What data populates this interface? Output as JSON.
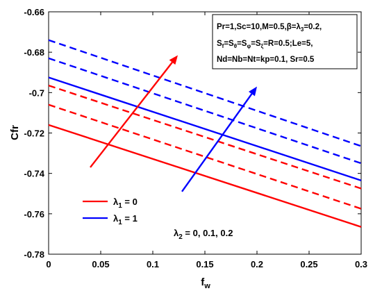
{
  "chart_data": {
    "type": "line",
    "xlabel": "f_w",
    "ylabel": "Cfr",
    "xlim": [
      0,
      0.3
    ],
    "ylim": [
      -0.78,
      -0.66
    ],
    "xticks": [
      0,
      0.05,
      0.1,
      0.15,
      0.2,
      0.25,
      0.3
    ],
    "xtick_labels": [
      "0",
      "0.05",
      "0.1",
      "0.15",
      "0.2",
      "0.25",
      "0.3"
    ],
    "yticks": [
      -0.78,
      -0.76,
      -0.74,
      -0.72,
      -0.7,
      -0.68,
      -0.66
    ],
    "ytick_labels": [
      "-0.78",
      "-0.76",
      "-0.74",
      "-0.72",
      "-0.7",
      "-0.68",
      "-0.66"
    ],
    "grid": false,
    "series": [
      {
        "name": "λ1 = 0",
        "color": "#ff0000",
        "dash": "solid",
        "x": [
          0,
          0.3
        ],
        "y": [
          -0.716,
          -0.7665
        ]
      },
      {
        "color": "#ff0000",
        "dash": "dashed",
        "x": [
          0,
          0.3
        ],
        "y": [
          -0.706,
          -0.7575
        ]
      },
      {
        "color": "#ff0000",
        "dash": "dashed",
        "x": [
          0,
          0.3
        ],
        "y": [
          -0.6965,
          -0.7475
        ]
      },
      {
        "name": "λ1 = 1",
        "color": "#0000ff",
        "dash": "solid",
        "x": [
          0,
          0.3
        ],
        "y": [
          -0.6925,
          -0.7435
        ]
      },
      {
        "color": "#0000ff",
        "dash": "dashed",
        "x": [
          0,
          0.3
        ],
        "y": [
          -0.683,
          -0.735
        ]
      },
      {
        "color": "#0000ff",
        "dash": "dashed",
        "x": [
          0,
          0.3
        ],
        "y": [
          -0.674,
          -0.7265
        ]
      }
    ],
    "arrows": [
      {
        "color": "#ff0000",
        "from": [
          0.04,
          -0.737
        ],
        "to": [
          0.124,
          -0.6815
        ]
      },
      {
        "color": "#0000ff",
        "from": [
          0.128,
          -0.749
        ],
        "to": [
          0.2,
          -0.697
        ]
      }
    ],
    "legend": {
      "placement": "bottom-left",
      "entries": [
        {
          "label_main": "λ",
          "label_sub": "1",
          "label_rest": " = 0",
          "color": "#ff0000"
        },
        {
          "label_main": "λ",
          "label_sub": "1",
          "label_rest": " = 1",
          "color": "#0000ff"
        }
      ]
    },
    "annotation": {
      "main": "λ",
      "sub": "2",
      "rest": " = 0, 0.1, 0.2",
      "x": 0.12,
      "y": -0.7715
    },
    "param_box": {
      "placement": "top-right",
      "line1": {
        "a": "Pr=1,Sc=10,M=0.5,",
        "b": "β",
        "c": "=",
        "d": "λ",
        "e": "3",
        "f": "=0.2,"
      },
      "line2": {
        "a": "S",
        "a_sub": "f",
        "b": "=S",
        "b_sub": "θ",
        "c": "=S",
        "c_sub": "φ",
        "d": "=S",
        "d_sub": "ξ",
        "e": "=R=0.5;Le=5,"
      },
      "line3": "Nd=Nb=Nt=kp=0.1, Sr=0.5"
    }
  }
}
